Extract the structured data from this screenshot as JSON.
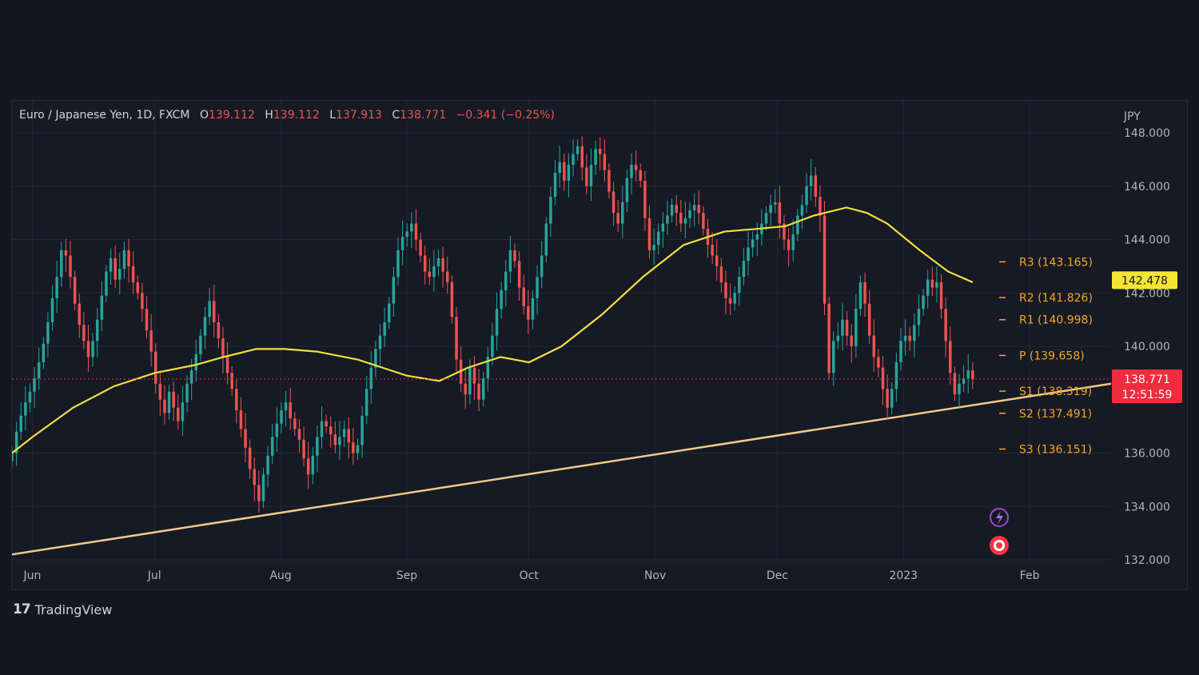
{
  "legend": {
    "symbol": "Euro / Japanese Yen, 1D, FXCM",
    "o_label": "O",
    "o_value": "139.112",
    "h_label": "H",
    "h_value": "139.112",
    "l_label": "L",
    "l_value": "137.913",
    "c_label": "C",
    "c_value": "138.771",
    "change": "−0.341 (−0.25%)"
  },
  "brand": {
    "logo": "17",
    "name": "TradingView"
  },
  "colors": {
    "up": "#26a69a",
    "down": "#ef5350",
    "ma": "#f0e040",
    "trendline": "#f3c98b",
    "pivot": "#f5a623",
    "grid": "#232733",
    "price_label": "#ef2d3e",
    "ma_label": "#f5e532"
  },
  "chart_data": {
    "type": "candlestick",
    "currency": "JPY",
    "ylim": [
      132,
      149.2
    ],
    "y_ticks": [
      "148.000",
      "146.000",
      "144.000",
      "142.000",
      "140.000",
      "136.000",
      "134.000",
      "132.000"
    ],
    "y_tick_values": [
      148,
      146,
      144,
      142,
      140,
      136,
      134,
      132
    ],
    "x_labels": [
      "Jun",
      "Jul",
      "Aug",
      "Sep",
      "Oct",
      "Nov",
      "Dec",
      "2023",
      "Feb"
    ],
    "x_label_days": [
      0,
      30,
      61,
      92,
      122,
      153,
      183,
      214,
      245
    ],
    "x_range_days": [
      -5,
      265
    ],
    "closes": [
      136,
      136.8,
      137.4,
      137.9,
      138.3,
      138.8,
      139.4,
      140.1,
      140.9,
      141.8,
      142.6,
      143.6,
      143.4,
      142.6,
      141.6,
      140.8,
      140.2,
      139.6,
      140.2,
      141.0,
      141.9,
      142.8,
      143.3,
      142.5,
      142.9,
      143.6,
      143.0,
      142.4,
      142.0,
      141.4,
      140.6,
      139.8,
      138.6,
      138.0,
      137.5,
      138.3,
      137.7,
      137.2,
      137.9,
      138.6,
      139.1,
      139.7,
      140.4,
      141.1,
      141.7,
      140.9,
      140.3,
      139.6,
      139.0,
      138.4,
      137.6,
      136.9,
      136.2,
      135.4,
      134.8,
      134.2,
      135.2,
      135.9,
      136.6,
      137.1,
      137.6,
      137.9,
      137.3,
      136.9,
      136.5,
      135.8,
      135.2,
      135.9,
      136.6,
      137.2,
      137.0,
      136.7,
      136.3,
      136.6,
      136.9,
      136.4,
      136.0,
      136.3,
      137.4,
      138.4,
      139.2,
      139.9,
      140.4,
      140.9,
      141.6,
      142.6,
      143.6,
      144.1,
      144.3,
      144.6,
      144.0,
      143.4,
      142.8,
      142.6,
      143.0,
      143.3,
      142.8,
      142.4,
      141.1,
      139.5,
      138.6,
      138.2,
      139.2,
      138.6,
      138.0,
      138.8,
      139.6,
      140.4,
      141.4,
      142.1,
      142.8,
      143.6,
      143.2,
      142.2,
      141.5,
      141.0,
      141.8,
      142.6,
      143.4,
      144.6,
      145.6,
      146.5,
      146.9,
      146.2,
      146.8,
      147.2,
      147.5,
      146.7,
      146.0,
      146.8,
      147.4,
      147.2,
      146.6,
      145.8,
      145.0,
      144.6,
      145.4,
      146.3,
      146.8,
      146.6,
      146.2,
      144.8,
      143.6,
      143.8,
      144.3,
      144.6,
      144.9,
      145.3,
      145.0,
      144.6,
      144.8,
      145.1,
      145.3,
      145.0,
      144.4,
      143.8,
      143.4,
      143.0,
      142.4,
      141.8,
      141.6,
      142.0,
      142.6,
      143.2,
      143.7,
      144.0,
      144.2,
      144.6,
      145.0,
      145.3,
      145.4,
      144.6,
      144.0,
      143.6,
      144.2,
      144.9,
      145.3,
      146.0,
      146.4,
      145.6,
      144.9,
      141.6,
      139.0,
      140.2,
      140.4,
      141.0,
      140.4,
      140.0,
      141.4,
      142.4,
      141.6,
      140.4,
      139.6,
      139.2,
      138.4,
      137.7,
      138.4,
      139.4,
      140.2,
      140.4,
      140.2,
      140.8,
      141.4,
      141.9,
      142.5,
      142.2,
      142.4,
      141.4,
      140.2,
      139.0,
      138.2,
      138.6,
      138.8,
      139.1,
      138.771
    ],
    "ma": {
      "days": [
        -5,
        0,
        10,
        20,
        30,
        40,
        47,
        55,
        62,
        70,
        80,
        92,
        100,
        107,
        115,
        122,
        130,
        140,
        150,
        160,
        170,
        178,
        185,
        192,
        200,
        205,
        210,
        218,
        225,
        231
      ],
      "values": [
        136.0,
        136.6,
        137.7,
        138.5,
        139.0,
        139.3,
        139.6,
        139.9,
        139.9,
        139.8,
        139.5,
        138.9,
        138.7,
        139.2,
        139.6,
        139.4,
        140.0,
        141.2,
        142.6,
        143.8,
        144.3,
        144.4,
        144.5,
        144.9,
        145.2,
        145.0,
        144.6,
        143.6,
        142.8,
        142.4
      ]
    },
    "trendline": {
      "start": [
        -5,
        132.2
      ],
      "end": [
        265,
        138.6
      ]
    },
    "pivots": [
      {
        "label": "R3 (143.165)",
        "value": 143.165
      },
      {
        "label": "R2 (141.826)",
        "value": 141.826
      },
      {
        "label": "R1 (140.998)",
        "value": 140.998
      },
      {
        "label": "P (139.658)",
        "value": 139.658
      },
      {
        "label": "S1 (138.319)",
        "value": 138.319
      },
      {
        "label": "S2 (137.491)",
        "value": 137.491
      },
      {
        "label": "S3 (136.151)",
        "value": 136.151
      }
    ],
    "ma_label": {
      "text": "142.478",
      "value": 142.478
    },
    "price_label": {
      "text": "138.771",
      "countdown": "12:51:59",
      "value": 138.771
    }
  }
}
